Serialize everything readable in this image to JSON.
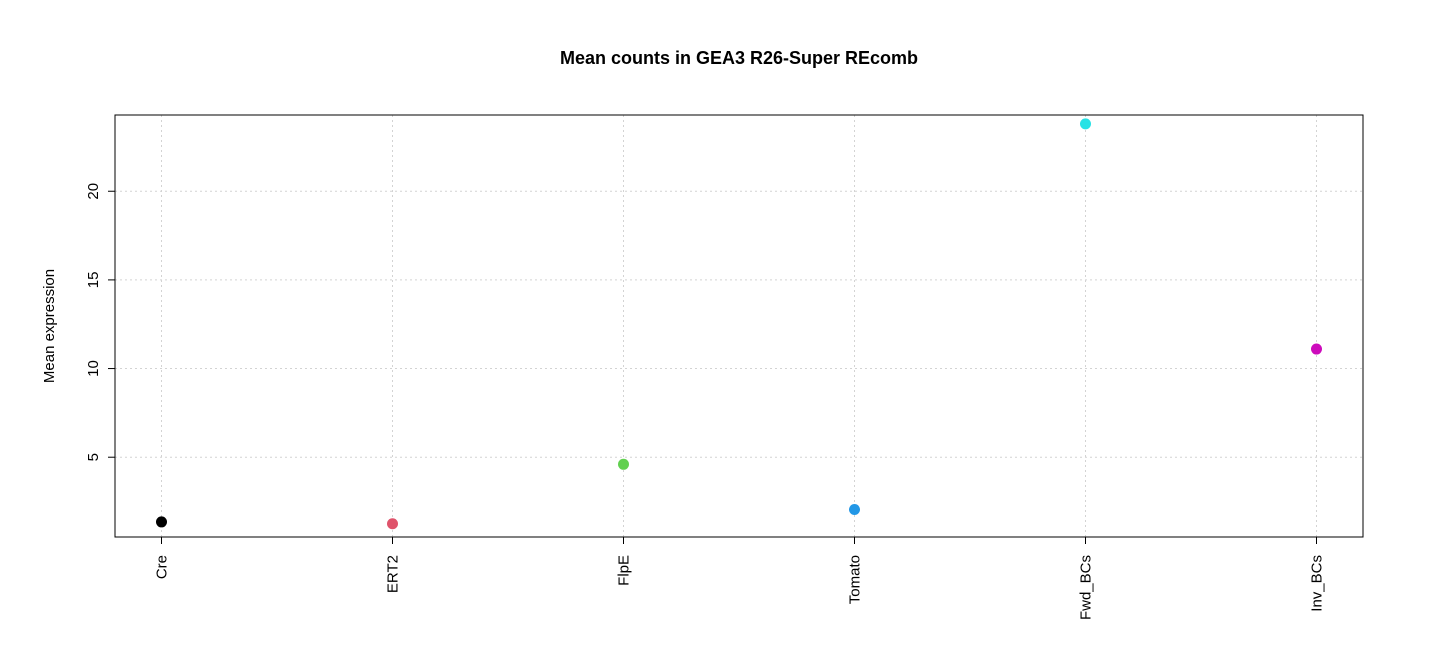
{
  "chart_data": {
    "type": "scatter",
    "title": "Mean counts in GEA3 R26-Super REcomb",
    "xlabel": "",
    "ylabel": "Mean expression",
    "categories": [
      "Cre",
      "ERT2",
      "FlpE",
      "Tomato",
      "Fwd_BCs",
      "Inv_BCs"
    ],
    "values": [
      1.35,
      1.25,
      4.6,
      2.05,
      23.8,
      11.1
    ],
    "colors": [
      "#000000",
      "#DF536B",
      "#61D04F",
      "#2297E6",
      "#28E2E5",
      "#CD0BBC"
    ],
    "yticks": [
      5,
      10,
      15,
      20
    ],
    "ylim": [
      0.5,
      24.3
    ],
    "grid": true,
    "legend": "none"
  }
}
